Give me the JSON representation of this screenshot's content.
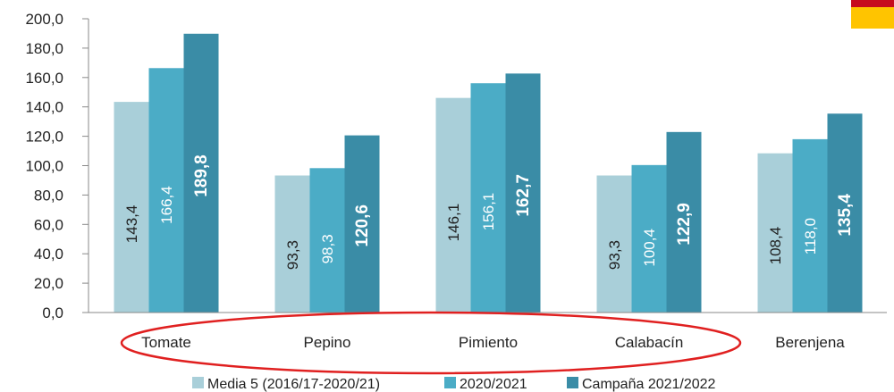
{
  "chart_data": {
    "type": "bar",
    "categories": [
      "Tomate",
      "Pepino",
      "Pimiento",
      "Calabacín",
      "Berenjena"
    ],
    "series": [
      {
        "name": "Media 5 (2016/17-2020/21)",
        "values": [
          143.4,
          93.3,
          146.1,
          93.3,
          108.4
        ],
        "labels": [
          "143,4",
          "93,3",
          "146,1",
          "93,3",
          "108,4"
        ],
        "color": "#a9cfd9"
      },
      {
        "name": "2020/2021",
        "values": [
          166.4,
          98.3,
          156.1,
          100.4,
          118.0
        ],
        "labels": [
          "166,4",
          "98,3",
          "156,1",
          "100,4",
          "118,0"
        ],
        "color": "#4bacc6"
      },
      {
        "name": "Campaña 2021/2022",
        "values": [
          189.8,
          120.6,
          162.7,
          122.9,
          135.4
        ],
        "labels": [
          "189,8",
          "120,6",
          "162,7",
          "122,9",
          "135,4"
        ],
        "color": "#3a8ca6"
      }
    ],
    "yticks": [
      "0,0",
      "20,0",
      "40,0",
      "60,0",
      "80,0",
      "100,0",
      "120,0",
      "140,0",
      "160,0",
      "180,0",
      "200,0"
    ],
    "ylim": [
      0,
      200
    ],
    "grid": false,
    "legend": "bottom",
    "annotation": {
      "shape": "ellipse",
      "color": "#e02020",
      "encloses": [
        "Tomate",
        "Pepino",
        "Pimiento",
        "Calabacín"
      ]
    },
    "flag_colors": [
      "#c60b1e",
      "#ffc400"
    ]
  }
}
